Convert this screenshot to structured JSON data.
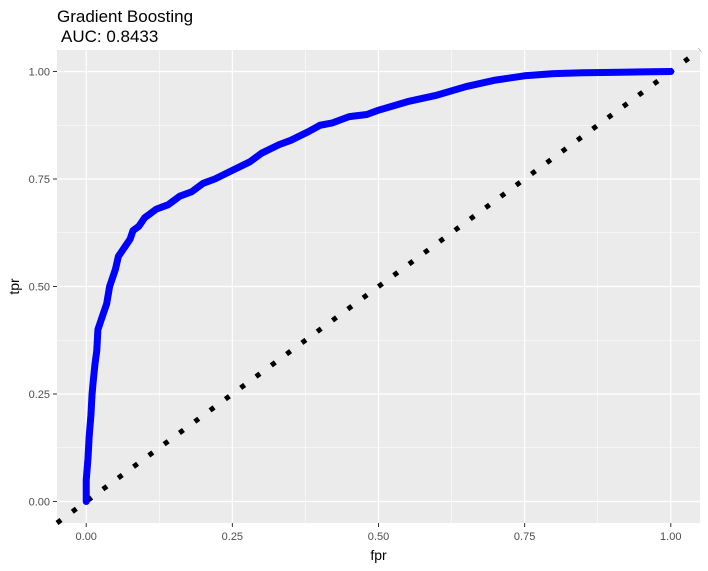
{
  "chart_data": {
    "type": "line",
    "title": "Gradient Boosting",
    "subtitle": "AUC: 0.8433",
    "xlabel": "fpr",
    "ylabel": "tpr",
    "xlim": [
      -0.05,
      1.05
    ],
    "ylim": [
      -0.05,
      1.05
    ],
    "xticks": [
      0.0,
      0.25,
      0.5,
      0.75,
      1.0
    ],
    "xtick_labels": [
      "0.00",
      "0.25",
      "0.50",
      "0.75",
      "1.00"
    ],
    "yticks": [
      0.0,
      0.25,
      0.5,
      0.75,
      1.0
    ],
    "ytick_labels": [
      "0.00",
      "0.25",
      "0.50",
      "0.75",
      "1.00"
    ],
    "grid": true,
    "background": "#ebebeb",
    "series": [
      {
        "style": "solid",
        "color": "#0000ff",
        "x": [
          0.0,
          0.0,
          0.003,
          0.005,
          0.008,
          0.01,
          0.012,
          0.015,
          0.018,
          0.02,
          0.025,
          0.03,
          0.035,
          0.04,
          0.05,
          0.055,
          0.06,
          0.07,
          0.075,
          0.08,
          0.09,
          0.1,
          0.11,
          0.12,
          0.13,
          0.14,
          0.15,
          0.16,
          0.18,
          0.2,
          0.22,
          0.25,
          0.28,
          0.3,
          0.33,
          0.35,
          0.38,
          0.4,
          0.42,
          0.45,
          0.48,
          0.5,
          0.55,
          0.6,
          0.65,
          0.7,
          0.75,
          0.8,
          0.85,
          0.9,
          0.95,
          1.0
        ],
        "y": [
          0.0,
          0.05,
          0.1,
          0.15,
          0.2,
          0.25,
          0.28,
          0.32,
          0.35,
          0.4,
          0.42,
          0.44,
          0.46,
          0.5,
          0.54,
          0.57,
          0.58,
          0.6,
          0.61,
          0.63,
          0.64,
          0.66,
          0.67,
          0.68,
          0.685,
          0.69,
          0.7,
          0.71,
          0.72,
          0.74,
          0.75,
          0.77,
          0.79,
          0.81,
          0.83,
          0.84,
          0.86,
          0.875,
          0.88,
          0.895,
          0.9,
          0.91,
          0.93,
          0.945,
          0.965,
          0.98,
          0.99,
          0.995,
          0.997,
          0.998,
          0.999,
          1.0
        ]
      },
      {
        "style": "dotted",
        "color": "#000000",
        "x": [
          -0.05,
          1.05
        ],
        "y": [
          -0.05,
          1.05
        ]
      }
    ]
  }
}
